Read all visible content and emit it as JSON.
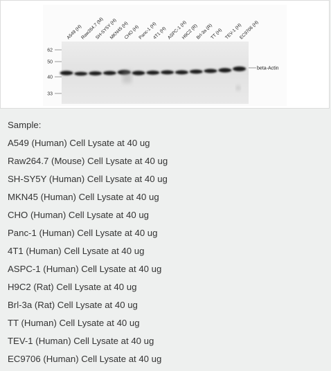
{
  "blot": {
    "lane_labels": [
      "A549 (H)",
      "Raw264.7 (M)",
      "SH-SY5Y (H)",
      "MKN45 (H)",
      "CHO (H)",
      "Panc-1 (H)",
      "4T1 (H)",
      "ASPC-1 (H)",
      "H9C2 (R)",
      "Brl-3a (R)",
      "TT (H)",
      "TEV-1 (H)",
      "EC9706 (H)"
    ],
    "marker_labels": [
      "62",
      "50",
      "40",
      "33"
    ],
    "band_label": "beta-Actin"
  },
  "samples": {
    "heading": "Sample:",
    "items": [
      "A549 (Human) Cell Lysate at 40 ug",
      "Raw264.7 (Mouse) Cell Lysate at 40 ug",
      "SH-SY5Y (Human) Cell Lysate at 40 ug",
      "MKN45 (Human) Cell Lysate at 40 ug",
      "CHO (Human) Cell Lysate at 40 ug",
      "Panc-1 (Human) Cell Lysate at 40 ug",
      "4T1 (Human) Cell Lysate at 40 ug",
      "ASPC-1 (Human) Cell Lysate at 40 ug",
      "H9C2 (Rat) Cell Lysate at 40 ug",
      "Brl-3a (Rat) Cell Lysate at 40 ug",
      "TT (Human) Cell Lysate at 40 ug",
      "TEV-1 (Human) Cell Lysate at 40 ug",
      "EC9706 (Human) Cell Lysate at 40 ug"
    ]
  },
  "colors": {
    "panel_bg": "#ffffff",
    "page_bg": "#eef0ef",
    "text": "#333333",
    "band": "#1e1e1e",
    "membrane": "#e6e6e6"
  }
}
